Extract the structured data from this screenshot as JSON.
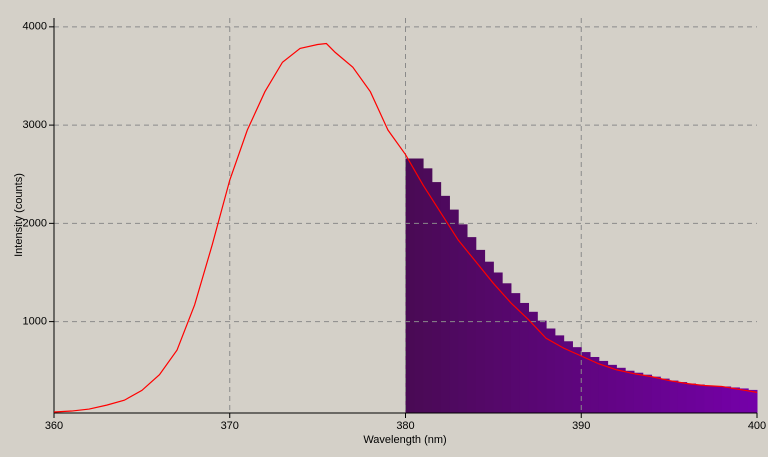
{
  "chart_data": [
    {
      "type": "line",
      "x_label": "Wavelength (nm)",
      "y_label": "Intensity (counts)",
      "xlim": [
        360,
        400
      ],
      "ylim": [
        70,
        4090
      ],
      "xticks": [
        360,
        370,
        380,
        390,
        400
      ],
      "yticks": [
        1000,
        2000,
        3000,
        4000
      ],
      "grid": true,
      "color": "#ff0000",
      "x": [
        360,
        361,
        362,
        363,
        364,
        365,
        366,
        367,
        368,
        369,
        370,
        371,
        372,
        373,
        374,
        375,
        375.5,
        376,
        377,
        378,
        379,
        380,
        381,
        382,
        383,
        384,
        385,
        386,
        387,
        388,
        389,
        390,
        391,
        392,
        393,
        394,
        395,
        396,
        397,
        398,
        399,
        400
      ],
      "values": [
        80,
        90,
        110,
        150,
        200,
        300,
        460,
        710,
        1170,
        1780,
        2440,
        2950,
        3340,
        3640,
        3780,
        3820,
        3830,
        3740,
        3590,
        3340,
        2950,
        2700,
        2390,
        2110,
        1830,
        1610,
        1390,
        1190,
        1020,
        830,
        730,
        650,
        570,
        510,
        470,
        440,
        400,
        370,
        350,
        340,
        310,
        280
      ]
    },
    {
      "type": "histogram",
      "colors": [
        "#4a0a55",
        "#7500aa"
      ],
      "bins": [
        380,
        380.5,
        381,
        381.5,
        382,
        382.5,
        383,
        383.5,
        384,
        384.5,
        385,
        385.5,
        386,
        386.5,
        387,
        387.5,
        388,
        388.5,
        389,
        389.5,
        390,
        390.5,
        391,
        391.5,
        392,
        392.5,
        393,
        393.5,
        394,
        394.5,
        395,
        395.5,
        396,
        396.5,
        397,
        397.5,
        398,
        398.5,
        399,
        399.5,
        400
      ],
      "values": [
        2660,
        2660,
        2560,
        2420,
        2280,
        2140,
        1990,
        1860,
        1730,
        1610,
        1500,
        1390,
        1290,
        1190,
        1100,
        1010,
        930,
        860,
        800,
        740,
        690,
        640,
        600,
        560,
        530,
        500,
        480,
        460,
        440,
        420,
        400,
        385,
        370,
        360,
        350,
        345,
        340,
        330,
        320,
        305
      ]
    }
  ]
}
